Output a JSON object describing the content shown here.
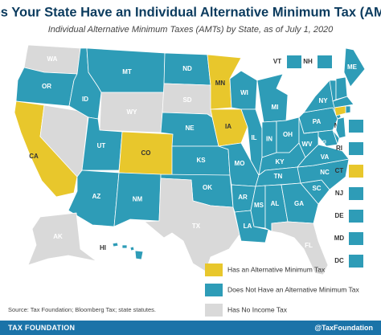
{
  "header": {
    "title": "Does Your State Have an Individual Alternative Minimum Tax (AMT)?",
    "subtitle": "Individual Alternative Minimum Taxes (AMTs) by State, as of July 1, 2020"
  },
  "states": [
    {
      "label": "WA",
      "color": "#d9d9d9",
      "label_color": "#ffffff"
    },
    {
      "label": "OR",
      "color": "#2e9cb7",
      "label_color": "#ffffff"
    },
    {
      "label": "CA",
      "color": "#e8c72c",
      "label_color": "#333333"
    },
    {
      "color": "#d9d9d9"
    },
    {
      "label": "ID",
      "color": "#2e9cb7",
      "label_color": "#ffffff"
    },
    {
      "label": "MT",
      "color": "#2e9cb7",
      "label_color": "#ffffff"
    },
    {
      "label": "WY",
      "color": "#d9d9d9",
      "label_color": "#ffffff"
    },
    {
      "label": "UT",
      "color": "#2e9cb7",
      "label_color": "#ffffff"
    },
    {
      "label": "CO",
      "color": "#e8c72c",
      "label_color": "#333333"
    },
    {
      "label": "AZ",
      "color": "#2e9cb7",
      "label_color": "#ffffff"
    },
    {
      "label": "NM",
      "color": "#2e9cb7",
      "label_color": "#ffffff"
    },
    {
      "label": "ND",
      "color": "#2e9cb7",
      "label_color": "#ffffff"
    },
    {
      "label": "SD",
      "color": "#d9d9d9",
      "label_color": "#ffffff"
    },
    {
      "label": "NE",
      "color": "#2e9cb7",
      "label_color": "#ffffff"
    },
    {
      "label": "KS",
      "color": "#2e9cb7",
      "label_color": "#ffffff"
    },
    {
      "label": "OK",
      "color": "#2e9cb7",
      "label_color": "#ffffff"
    },
    {
      "label": "TX",
      "color": "#d9d9d9",
      "label_color": "#ffffff"
    },
    {
      "label": "MN",
      "color": "#e8c72c",
      "label_color": "#333333"
    },
    {
      "label": "IA",
      "color": "#e8c72c",
      "label_color": "#333333"
    },
    {
      "label": "MO",
      "color": "#2e9cb7",
      "label_color": "#ffffff"
    },
    {
      "label": "AR",
      "color": "#2e9cb7",
      "label_color": "#ffffff"
    },
    {
      "label": "LA",
      "color": "#2e9cb7",
      "label_color": "#ffffff"
    },
    {
      "label": "WI",
      "color": "#2e9cb7",
      "label_color": "#ffffff"
    },
    {
      "label": "IL",
      "color": "#2e9cb7",
      "label_color": "#ffffff"
    },
    {
      "label": "MI",
      "color": "#2e9cb7",
      "label_color": "#ffffff"
    },
    {
      "label": "IN",
      "color": "#2e9cb7",
      "label_color": "#ffffff"
    },
    {
      "label": "OH",
      "color": "#2e9cb7",
      "label_color": "#ffffff"
    },
    {
      "label": "KY",
      "color": "#2e9cb7",
      "label_color": "#ffffff"
    },
    {
      "label": "TN",
      "color": "#2e9cb7",
      "label_color": "#ffffff"
    },
    {
      "label": "MS",
      "color": "#2e9cb7",
      "label_color": "#ffffff"
    },
    {
      "label": "AL",
      "color": "#2e9cb7",
      "label_color": "#ffffff"
    },
    {
      "label": "GA",
      "color": "#2e9cb7",
      "label_color": "#ffffff"
    },
    {
      "label": "SC",
      "color": "#2e9cb7",
      "label_color": "#ffffff"
    },
    {
      "label": "NC",
      "color": "#2e9cb7",
      "label_color": "#ffffff"
    },
    {
      "label": "VA",
      "color": "#2e9cb7",
      "label_color": "#ffffff"
    },
    {
      "label": "WV",
      "color": "#2e9cb7",
      "label_color": "#ffffff"
    },
    {
      "label": "PA",
      "color": "#2e9cb7",
      "label_color": "#ffffff"
    },
    {
      "label": "NY",
      "color": "#2e9cb7",
      "label_color": "#ffffff"
    },
    {
      "label": "ME",
      "color": "#2e9cb7",
      "label_color": "#ffffff"
    },
    {
      "label": "VT",
      "color": "#2e9cb7",
      "label_color": "#333333"
    },
    {
      "label": "NH",
      "color": "#2e9cb7",
      "label_color": "#333333"
    },
    {
      "label": "MA",
      "color": "#2e9cb7",
      "label_color": "#333333"
    },
    {
      "label": "RI",
      "color": "#2e9cb7",
      "label_color": "#333333"
    },
    {
      "label": "CT",
      "color": "#e8c72c",
      "label_color": "#333333"
    },
    {
      "label": "NJ",
      "color": "#2e9cb7",
      "label_color": "#333333"
    },
    {
      "label": "DE",
      "color": "#2e9cb7",
      "label_color": "#333333"
    },
    {
      "label": "MD",
      "color": "#2e9cb7",
      "label_color": "#333333"
    },
    {
      "label": "DC",
      "color": "#2e9cb7",
      "label_color": "#333333"
    },
    {
      "label": "FL",
      "color": "#d9d9d9",
      "label_color": "#ffffff"
    },
    {
      "label": "AK",
      "color": "#d9d9d9",
      "label_color": "#ffffff"
    },
    {
      "label": "HI",
      "color": "#2e9cb7",
      "label_color": "#333333"
    }
  ],
  "legend": [
    {
      "label": "Has an Alternative Minimum Tax",
      "color": "#e8c72c"
    },
    {
      "label": "Does Not Have an Alternative Minimum Tax",
      "color": "#2e9cb7"
    },
    {
      "label": "Has No Income Tax",
      "color": "#d9d9d9"
    }
  ],
  "source": "Source: Tax Foundation; Bloomberg Tax; state statutes.",
  "footer": {
    "brand": "TAX FOUNDATION",
    "handle": "@TaxFoundation"
  }
}
